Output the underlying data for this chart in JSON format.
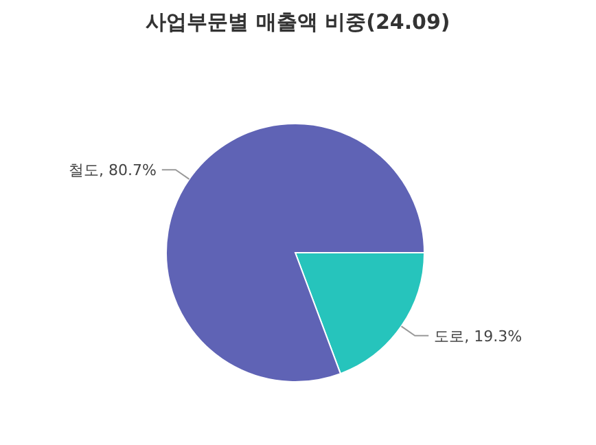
{
  "chart_data": {
    "type": "pie",
    "title": "사업부문별 매출액 비중(24.09)",
    "categories": [
      "도로",
      "철도"
    ],
    "values": [
      19.3,
      80.7
    ],
    "value_labels": [
      ", 19.3%",
      ", 80.7%"
    ],
    "colors": [
      "#26c4bc",
      "#5f63b5"
    ]
  }
}
